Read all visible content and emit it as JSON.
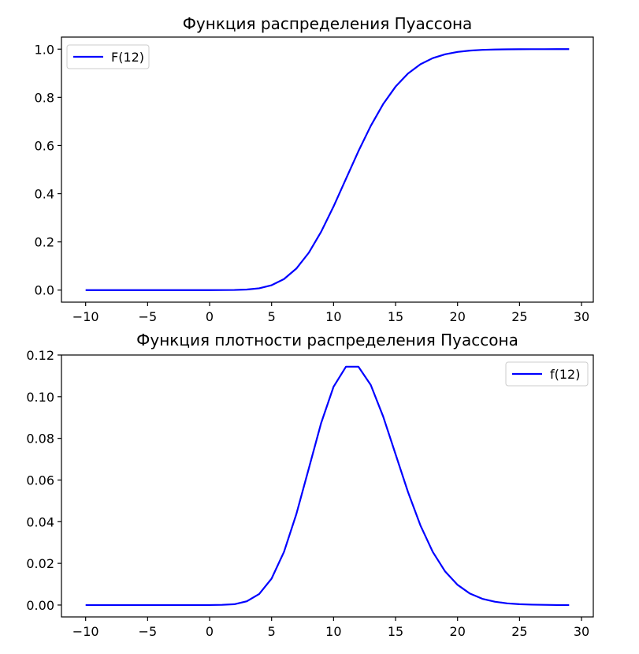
{
  "chart_data": [
    {
      "type": "line",
      "title": "Функция распределения Пуассона",
      "xlabel": "",
      "ylabel": "",
      "xlim": [
        -11.95,
        30.95
      ],
      "ylim": [
        -0.05,
        1.05
      ],
      "x_ticks": [
        -10,
        -5,
        0,
        5,
        10,
        15,
        20,
        25,
        30
      ],
      "y_ticks": [
        0.0,
        0.2,
        0.4,
        0.6,
        0.8,
        1.0
      ],
      "x_tick_labels": [
        "−10",
        "−5",
        "0",
        "5",
        "10",
        "15",
        "20",
        "25",
        "30"
      ],
      "y_tick_labels": [
        "0.0",
        "0.2",
        "0.4",
        "0.6",
        "0.8",
        "1.0"
      ],
      "grid": false,
      "legend_position": "upper-left",
      "series": [
        {
          "name": "F(12)",
          "color": "#0000ff",
          "x": [
            -10,
            -9,
            -8,
            -7,
            -6,
            -5,
            -4,
            -3,
            -2,
            -1,
            0,
            1,
            2,
            3,
            4,
            5,
            6,
            7,
            8,
            9,
            10,
            11,
            12,
            13,
            14,
            15,
            16,
            17,
            18,
            19,
            20,
            21,
            22,
            23,
            24,
            25,
            26,
            27,
            28,
            29
          ],
          "y": [
            0,
            0,
            0,
            0,
            0,
            0,
            0,
            0,
            0,
            0,
            0.0,
            0.0001,
            0.0005,
            0.0023,
            0.0076,
            0.0203,
            0.0458,
            0.0895,
            0.155,
            0.2424,
            0.3472,
            0.4616,
            0.576,
            0.6815,
            0.772,
            0.8444,
            0.8987,
            0.937,
            0.9626,
            0.9787,
            0.9884,
            0.9939,
            0.997,
            0.9985,
            0.9993,
            0.9997,
            0.9999,
            0.9999,
            1.0,
            1.0
          ]
        }
      ]
    },
    {
      "type": "line",
      "title": "Функция плотности распределения Пуассона",
      "xlabel": "",
      "ylabel": "",
      "xlim": [
        -11.95,
        30.95
      ],
      "ylim": [
        -0.0057,
        0.12
      ],
      "x_ticks": [
        -10,
        -5,
        0,
        5,
        10,
        15,
        20,
        25,
        30
      ],
      "y_ticks": [
        0.0,
        0.02,
        0.04,
        0.06,
        0.08,
        0.1,
        0.12
      ],
      "x_tick_labels": [
        "−10",
        "−5",
        "0",
        "5",
        "10",
        "15",
        "20",
        "25",
        "30"
      ],
      "y_tick_labels": [
        "0.00",
        "0.02",
        "0.04",
        "0.06",
        "0.08",
        "0.10",
        "0.12"
      ],
      "grid": false,
      "legend_position": "upper-right",
      "series": [
        {
          "name": "f(12)",
          "color": "#0000ff",
          "x": [
            -10,
            -9,
            -8,
            -7,
            -6,
            -5,
            -4,
            -3,
            -2,
            -1,
            0,
            1,
            2,
            3,
            4,
            5,
            6,
            7,
            8,
            9,
            10,
            11,
            12,
            13,
            14,
            15,
            16,
            17,
            18,
            19,
            20,
            21,
            22,
            23,
            24,
            25,
            26,
            27,
            28,
            29
          ],
          "y": [
            0,
            0,
            0,
            0,
            0,
            0,
            0,
            0,
            0,
            0,
            0.0,
            0.0001,
            0.0004,
            0.0018,
            0.0053,
            0.0127,
            0.0255,
            0.0437,
            0.0655,
            0.0874,
            0.1048,
            0.1144,
            0.1144,
            0.1056,
            0.0905,
            0.0724,
            0.0543,
            0.0383,
            0.0255,
            0.0161,
            0.0097,
            0.0055,
            0.003,
            0.0016,
            0.0008,
            0.0004,
            0.0002,
            0.0001,
            0.0,
            0.0
          ]
        }
      ]
    }
  ]
}
